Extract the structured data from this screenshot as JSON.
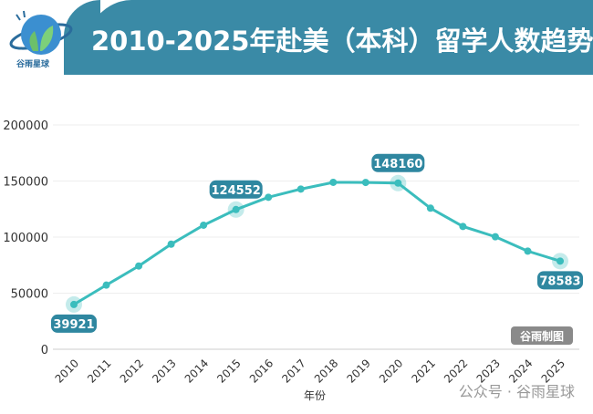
{
  "header": {
    "title": "2010-2025年赴美（本科）留学人数趋势",
    "logo_text": "谷雨星球"
  },
  "colors": {
    "banner": "#3a8aa6",
    "line": "#3bbdbd",
    "label_bg": "#2f87a0",
    "badge_bg": "#8a8a8a"
  },
  "badge": "谷雨制图",
  "footer_watermark": "公众号 · 谷雨星球",
  "chart_data": {
    "type": "line",
    "title": "",
    "xlabel": "年份",
    "ylabel": "",
    "ylim": [
      0,
      200000
    ],
    "yticks": [
      0,
      50000,
      100000,
      150000,
      200000
    ],
    "grid": true,
    "categories": [
      "2010",
      "2011",
      "2012",
      "2013",
      "2014",
      "2015",
      "2016",
      "2017",
      "2018",
      "2019",
      "2020",
      "2021",
      "2022",
      "2023",
      "2024",
      "2025"
    ],
    "values": [
      39921,
      57200,
      74200,
      93700,
      110600,
      124552,
      135500,
      142800,
      148800,
      148700,
      148160,
      125800,
      109500,
      100300,
      87500,
      78583
    ],
    "labeled_points": [
      {
        "category": "2010",
        "label": "39921",
        "position": "below"
      },
      {
        "category": "2015",
        "label": "124552",
        "position": "above"
      },
      {
        "category": "2020",
        "label": "148160",
        "position": "above"
      },
      {
        "category": "2025",
        "label": "78583",
        "position": "below"
      }
    ]
  }
}
